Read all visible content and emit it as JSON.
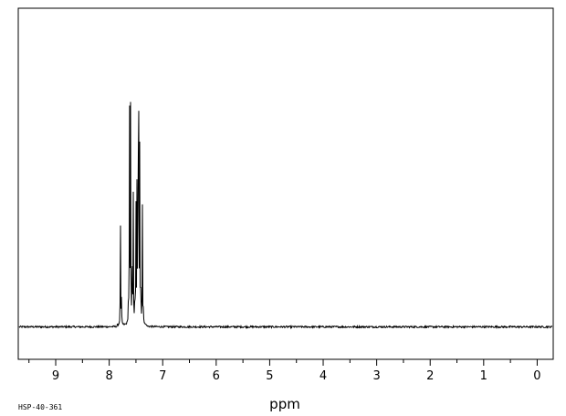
{
  "chart_data": {
    "type": "line",
    "xlabel": "ppm",
    "xlim": [
      9.7,
      -0.3
    ],
    "x_reversed": true,
    "x_ticks": [
      9,
      8,
      7,
      6,
      5,
      4,
      3,
      2,
      1,
      0
    ],
    "x_tick_labels": [
      "9",
      "8",
      "7",
      "6",
      "5",
      "4",
      "3",
      "2",
      "1",
      "0"
    ],
    "ylim": [
      -0.11,
      1.08
    ],
    "grid": false,
    "baseline": 0,
    "peaks": [
      {
        "ppm": 7.79,
        "intensity": 0.38
      },
      {
        "ppm": 7.77,
        "intensity": 0.1
      },
      {
        "ppm": 7.64,
        "intensity": 0.11
      },
      {
        "ppm": 7.62,
        "intensity": 0.92
      },
      {
        "ppm": 7.6,
        "intensity": 0.78
      },
      {
        "ppm": 7.57,
        "intensity": 0.3
      },
      {
        "ppm": 7.55,
        "intensity": 0.43
      },
      {
        "ppm": 7.52,
        "intensity": 0.12
      },
      {
        "ppm": 7.5,
        "intensity": 0.44
      },
      {
        "ppm": 7.48,
        "intensity": 0.53
      },
      {
        "ppm": 7.46,
        "intensity": 0.7
      },
      {
        "ppm": 7.45,
        "intensity": 0.99
      },
      {
        "ppm": 7.43,
        "intensity": 0.58
      },
      {
        "ppm": 7.41,
        "intensity": 0.16
      },
      {
        "ppm": 7.38,
        "intensity": 0.42
      },
      {
        "ppm": 7.36,
        "intensity": 0.06
      }
    ]
  },
  "footer": {
    "code": "HSP-40-361"
  },
  "colors": {
    "line": "#000000",
    "background": "#ffffff"
  }
}
